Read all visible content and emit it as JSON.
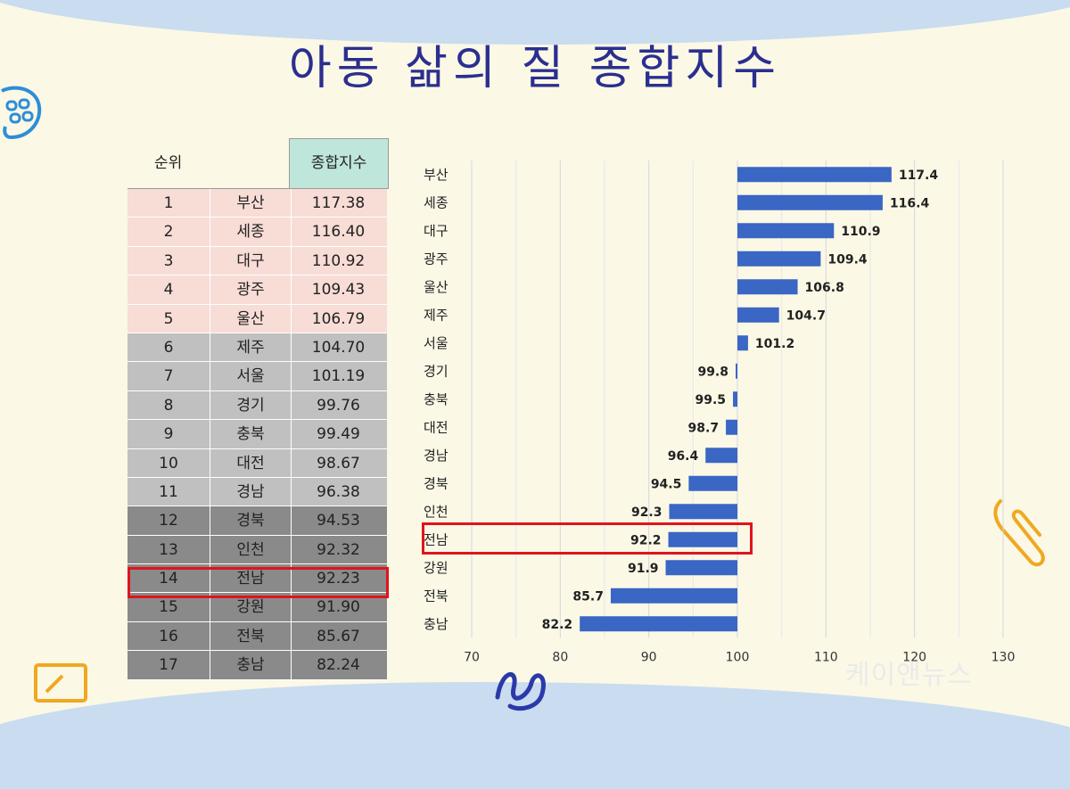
{
  "title": "아동 삶의 질 종합지수",
  "table": {
    "header_rank": "순위",
    "header_index": "종합지수",
    "rows": [
      {
        "rank": "1",
        "region": "부산",
        "value": "117.38"
      },
      {
        "rank": "2",
        "region": "세종",
        "value": "116.40"
      },
      {
        "rank": "3",
        "region": "대구",
        "value": "110.92"
      },
      {
        "rank": "4",
        "region": "광주",
        "value": "109.43"
      },
      {
        "rank": "5",
        "region": "울산",
        "value": "106.79"
      },
      {
        "rank": "6",
        "region": "제주",
        "value": "104.70"
      },
      {
        "rank": "7",
        "region": "서울",
        "value": "101.19"
      },
      {
        "rank": "8",
        "region": "경기",
        "value": "99.76"
      },
      {
        "rank": "9",
        "region": "충북",
        "value": "99.49"
      },
      {
        "rank": "10",
        "region": "대전",
        "value": "98.67"
      },
      {
        "rank": "11",
        "region": "경남",
        "value": "96.38"
      },
      {
        "rank": "12",
        "region": "경북",
        "value": "94.53"
      },
      {
        "rank": "13",
        "region": "인천",
        "value": "92.32"
      },
      {
        "rank": "14",
        "region": "전남",
        "value": "92.23"
      },
      {
        "rank": "15",
        "region": "강원",
        "value": "91.90"
      },
      {
        "rank": "16",
        "region": "전북",
        "value": "85.67"
      },
      {
        "rank": "17",
        "region": "충남",
        "value": "82.24"
      }
    ]
  },
  "chart_data": {
    "type": "bar",
    "orientation": "horizontal",
    "categories": [
      "부산",
      "세종",
      "대구",
      "광주",
      "울산",
      "제주",
      "서울",
      "경기",
      "충북",
      "대전",
      "경남",
      "경북",
      "인천",
      "전남",
      "강원",
      "전북",
      "충남"
    ],
    "values": [
      117.4,
      116.4,
      110.9,
      109.4,
      106.8,
      104.7,
      101.2,
      99.8,
      99.5,
      98.7,
      96.4,
      94.5,
      92.3,
      92.2,
      91.9,
      85.7,
      82.2
    ],
    "value_labels": [
      "117.4",
      "116.4",
      "110.9",
      "109.4",
      "106.8",
      "104.7",
      "101.2",
      "99.8",
      "99.5",
      "98.7",
      "96.4",
      "94.5",
      "92.3",
      "92.2",
      "91.9",
      "85.7",
      "82.2"
    ],
    "baseline": 100,
    "xlim": [
      70,
      130
    ],
    "xticks": [
      "70",
      "80",
      "90",
      "100",
      "110",
      "120",
      "130"
    ],
    "grid": true,
    "bar_color": "#3a66c4",
    "highlight_category": "전남",
    "highlight_color": "#e0141c"
  },
  "watermark": "케이앤뉴스"
}
